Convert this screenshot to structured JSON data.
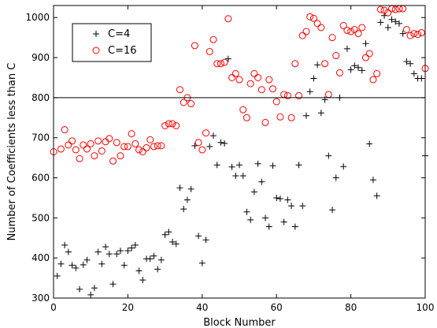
{
  "chart_data": {
    "type": "scatter",
    "xlabel": "Block Number",
    "ylabel": "Number of Coefficients less than C",
    "xlim": [
      0,
      100
    ],
    "ylim": [
      300,
      1030
    ],
    "xticks": [
      0,
      20,
      40,
      60,
      80,
      100
    ],
    "yticks": [
      300,
      400,
      500,
      600,
      700,
      800,
      900,
      1000
    ],
    "grid": false,
    "legend_position": "top-left",
    "hline": 800,
    "series": [
      {
        "name": "C=4",
        "marker": "plus",
        "color": "#000000",
        "points": [
          [
            1,
            355
          ],
          [
            2,
            385
          ],
          [
            3,
            432
          ],
          [
            4,
            415
          ],
          [
            5,
            382
          ],
          [
            6,
            375
          ],
          [
            7,
            322
          ],
          [
            8,
            383
          ],
          [
            9,
            395
          ],
          [
            10,
            308
          ],
          [
            11,
            325
          ],
          [
            12,
            415
          ],
          [
            13,
            385
          ],
          [
            14,
            428
          ],
          [
            15,
            410
          ],
          [
            16,
            335
          ],
          [
            17,
            410
          ],
          [
            18,
            418
          ],
          [
            19,
            382
          ],
          [
            20,
            418
          ],
          [
            21,
            425
          ],
          [
            22,
            432
          ],
          [
            23,
            368
          ],
          [
            24,
            345
          ],
          [
            25,
            398
          ],
          [
            26,
            398
          ],
          [
            27,
            405
          ],
          [
            28,
            372
          ],
          [
            29,
            395
          ],
          [
            30,
            458
          ],
          [
            31,
            465
          ],
          [
            32,
            440
          ],
          [
            33,
            435
          ],
          [
            34,
            575
          ],
          [
            35,
            522
          ],
          [
            36,
            545
          ],
          [
            37,
            572
          ],
          [
            38,
            680
          ],
          [
            39,
            455
          ],
          [
            40,
            387
          ],
          [
            41,
            445
          ],
          [
            42,
            678
          ],
          [
            43,
            705
          ],
          [
            44,
            632
          ],
          [
            45,
            688
          ],
          [
            46,
            686
          ],
          [
            47,
            897
          ],
          [
            48,
            627
          ],
          [
            49,
            605
          ],
          [
            50,
            632
          ],
          [
            51,
            605
          ],
          [
            52,
            515
          ],
          [
            53,
            495
          ],
          [
            54,
            565
          ],
          [
            55,
            635
          ],
          [
            56,
            590
          ],
          [
            57,
            500
          ],
          [
            58,
            478
          ],
          [
            59,
            630
          ],
          [
            60,
            550
          ],
          [
            61,
            548
          ],
          [
            62,
            490
          ],
          [
            63,
            545
          ],
          [
            64,
            530
          ],
          [
            65,
            478
          ],
          [
            66,
            632
          ],
          [
            67,
            530
          ],
          [
            68,
            755
          ],
          [
            69,
            815
          ],
          [
            70,
            848
          ],
          [
            71,
            882
          ],
          [
            72,
            762
          ],
          [
            73,
            795
          ],
          [
            74,
            655
          ],
          [
            75,
            520
          ],
          [
            76,
            600
          ],
          [
            77,
            800
          ],
          [
            78,
            628
          ],
          [
            79,
            922
          ],
          [
            80,
            870
          ],
          [
            81,
            880
          ],
          [
            82,
            875
          ],
          [
            83,
            868
          ],
          [
            84,
            935
          ],
          [
            85,
            685
          ],
          [
            86,
            595
          ],
          [
            87,
            555
          ],
          [
            88,
            988
          ],
          [
            89,
            1005
          ],
          [
            90,
            975
          ],
          [
            91,
            995
          ],
          [
            92,
            990
          ],
          [
            93,
            985
          ],
          [
            94,
            960
          ],
          [
            95,
            890
          ],
          [
            96,
            885
          ],
          [
            97,
            860
          ],
          [
            98,
            848
          ],
          [
            99,
            848
          ],
          [
            100,
            655
          ]
        ]
      },
      {
        "name": "C=16",
        "marker": "circle",
        "color": "#ff0000",
        "points": [
          [
            0,
            665
          ],
          [
            2,
            672
          ],
          [
            3,
            720
          ],
          [
            4,
            682
          ],
          [
            5,
            692
          ],
          [
            6,
            670
          ],
          [
            7,
            648
          ],
          [
            8,
            682
          ],
          [
            9,
            672
          ],
          [
            10,
            685
          ],
          [
            11,
            655
          ],
          [
            12,
            692
          ],
          [
            13,
            667
          ],
          [
            14,
            690
          ],
          [
            15,
            698
          ],
          [
            16,
            642
          ],
          [
            17,
            688
          ],
          [
            18,
            655
          ],
          [
            19,
            678
          ],
          [
            20,
            678
          ],
          [
            21,
            710
          ],
          [
            22,
            685
          ],
          [
            23,
            670
          ],
          [
            24,
            665
          ],
          [
            25,
            675
          ],
          [
            26,
            695
          ],
          [
            27,
            678
          ],
          [
            28,
            680
          ],
          [
            29,
            680
          ],
          [
            30,
            730
          ],
          [
            31,
            735
          ],
          [
            32,
            735
          ],
          [
            33,
            730
          ],
          [
            34,
            820
          ],
          [
            35,
            788
          ],
          [
            36,
            800
          ],
          [
            37,
            785
          ],
          [
            38,
            930
          ],
          [
            39,
            688
          ],
          [
            40,
            670
          ],
          [
            41,
            712
          ],
          [
            42,
            915
          ],
          [
            43,
            945
          ],
          [
            44,
            885
          ],
          [
            45,
            885
          ],
          [
            46,
            888
          ],
          [
            47,
            997
          ],
          [
            48,
            850
          ],
          [
            49,
            860
          ],
          [
            50,
            845
          ],
          [
            51,
            770
          ],
          [
            52,
            750
          ],
          [
            53,
            835
          ],
          [
            54,
            860
          ],
          [
            55,
            850
          ],
          [
            56,
            820
          ],
          [
            57,
            738
          ],
          [
            58,
            845
          ],
          [
            59,
            822
          ],
          [
            60,
            790
          ],
          [
            61,
            752
          ],
          [
            62,
            808
          ],
          [
            63,
            805
          ],
          [
            64,
            750
          ],
          [
            65,
            885
          ],
          [
            66,
            805
          ],
          [
            67,
            955
          ],
          [
            68,
            965
          ],
          [
            69,
            1002
          ],
          [
            70,
            998
          ],
          [
            71,
            985
          ],
          [
            72,
            975
          ],
          [
            73,
            885
          ],
          [
            74,
            808
          ],
          [
            75,
            950
          ],
          [
            76,
            905
          ],
          [
            77,
            862
          ],
          [
            78,
            980
          ],
          [
            79,
            968
          ],
          [
            80,
            965
          ],
          [
            81,
            970
          ],
          [
            82,
            960
          ],
          [
            83,
            975
          ],
          [
            84,
            900
          ],
          [
            85,
            910
          ],
          [
            86,
            845
          ],
          [
            87,
            860
          ],
          [
            88,
            1020
          ],
          [
            89,
            1018
          ],
          [
            90,
            1012
          ],
          [
            91,
            1022
          ],
          [
            92,
            1020
          ],
          [
            93,
            1022
          ],
          [
            94,
            1022
          ],
          [
            95,
            970
          ],
          [
            96,
            955
          ],
          [
            97,
            960
          ],
          [
            98,
            958
          ],
          [
            99,
            962
          ],
          [
            100,
            873
          ]
        ]
      }
    ]
  }
}
